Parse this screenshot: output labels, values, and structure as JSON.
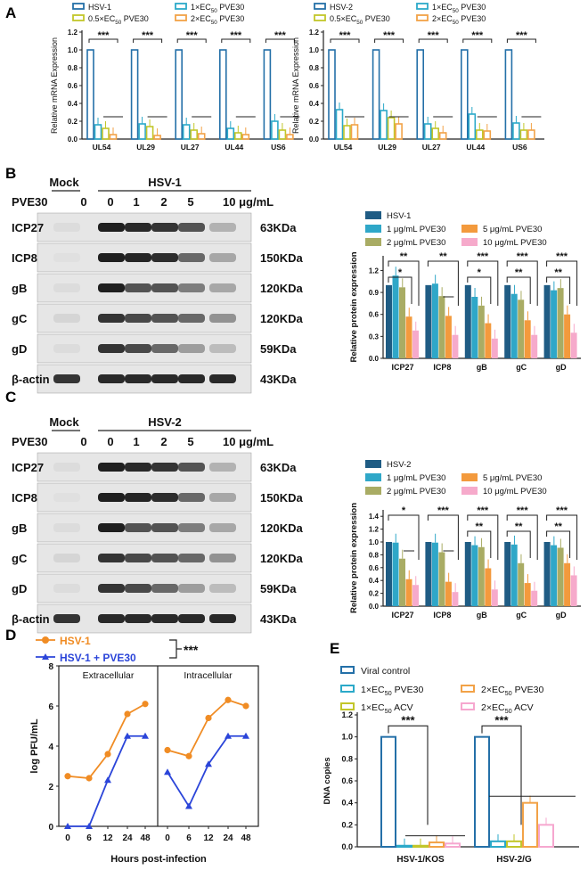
{
  "panels": {
    "A": "A",
    "B": "B",
    "C": "C",
    "D": "D",
    "E": "E"
  },
  "colors": {
    "c_hsv": "#2470A8",
    "c_05": "#2BA9C9",
    "c_1": "#C2C62A",
    "c_2": "#F2A247",
    "c_5": "#F39239",
    "c_10": "#F6A7CF",
    "wb_1": "#1F5C84",
    "wb_2": "#2FA7C8",
    "wb_3": "#A9AC64",
    "wb_4": "#F39A3D",
    "wb_5": "#F6AACB",
    "d_hsv1": "#F08C24",
    "d_pve": "#2B45D9",
    "e_viral": "#2470A8",
    "e_pve1": "#2BA9C9",
    "e_pve2": "#C2C62A",
    "e_acv1": "#F2A247",
    "e_acv2": "#F6A7CF"
  },
  "blot_B": {
    "mock": "Mock",
    "virus": "HSV-1",
    "pve_label": "PVE30",
    "lanes": [
      "0",
      "0",
      "1",
      "2",
      "5",
      "10 μg/mL"
    ],
    "rows": [
      {
        "protein": "ICP27",
        "size": "63KDa"
      },
      {
        "protein": "ICP8",
        "size": "150KDa"
      },
      {
        "protein": "gB",
        "size": "120KDa"
      },
      {
        "protein": "gC",
        "size": "120KDa"
      },
      {
        "protein": "gD",
        "size": "59KDa"
      },
      {
        "protein": "β-actin",
        "size": "43KDa"
      }
    ]
  },
  "blot_C": {
    "mock": "Mock",
    "virus": "HSV-2",
    "pve_label": "PVE30",
    "lanes": [
      "0",
      "0",
      "1",
      "2",
      "5",
      "10 μg/mL"
    ],
    "rows": [
      {
        "protein": "ICP27",
        "size": "63KDa"
      },
      {
        "protein": "ICP8",
        "size": "150KDa"
      },
      {
        "protein": "gB",
        "size": "120KDa"
      },
      {
        "protein": "gC",
        "size": "120KDa"
      },
      {
        "protein": "gD",
        "size": "59KDa"
      },
      {
        "protein": "β-actin",
        "size": "43KDa"
      }
    ]
  },
  "chart_data": [
    {
      "id": "A1",
      "type": "bar",
      "ylabel": "Relative mRNA Expression",
      "ylim": [
        0,
        1.2
      ],
      "yticks": [
        "0.0",
        "0.2",
        "0.4",
        "0.6",
        "0.8",
        "1.0",
        "1.2"
      ],
      "categories": [
        "UL54",
        "UL29",
        "UL27",
        "UL44",
        "US6"
      ],
      "legend": [
        "HSV-1",
        "1×EC50 PVE30",
        "0.5×EC50 PVE30",
        "2×EC50 PVE30"
      ],
      "sig": [
        "***",
        "***",
        "***",
        "***",
        "***"
      ],
      "series": [
        {
          "name": "HSV-1",
          "values": [
            1.0,
            1.0,
            1.0,
            1.0,
            1.0
          ]
        },
        {
          "name": "0.5×EC50 PVE30",
          "values": [
            0.16,
            0.17,
            0.16,
            0.12,
            0.2
          ]
        },
        {
          "name": "1×EC50 PVE30",
          "values": [
            0.12,
            0.14,
            0.1,
            0.07,
            0.1
          ]
        },
        {
          "name": "2×EC50 PVE30",
          "values": [
            0.05,
            0.04,
            0.06,
            0.05,
            0.05
          ]
        }
      ]
    },
    {
      "id": "A2",
      "type": "bar",
      "ylabel": "Relative mRNA Expression",
      "ylim": [
        0,
        1.2
      ],
      "yticks": [
        "0.0",
        "0.2",
        "0.4",
        "0.6",
        "0.8",
        "1.0",
        "1.2"
      ],
      "categories": [
        "UL54",
        "UL29",
        "UL27",
        "UL44",
        "US6"
      ],
      "legend": [
        "HSV-2",
        "1×EC50 PVE30",
        "0.5×EC50 PVE30",
        "2×EC50 PVE30"
      ],
      "sig": [
        "***",
        "***",
        "***",
        "***",
        "***"
      ],
      "series": [
        {
          "name": "HSV-2",
          "values": [
            1.0,
            1.0,
            1.0,
            1.0,
            1.0
          ]
        },
        {
          "name": "0.5×EC50 PVE30",
          "values": [
            0.33,
            0.32,
            0.17,
            0.28,
            0.18
          ]
        },
        {
          "name": "1×EC50 PVE30",
          "values": [
            0.15,
            0.24,
            0.12,
            0.1,
            0.1
          ]
        },
        {
          "name": "2×EC50 PVE30",
          "values": [
            0.16,
            0.17,
            0.07,
            0.09,
            0.1
          ]
        }
      ]
    },
    {
      "id": "B",
      "type": "bar",
      "ylabel": "Relative protein expression",
      "ylim": [
        0,
        1.4
      ],
      "yticks": [
        "0.0",
        "0.3",
        "0.6",
        "0.9",
        "1.2"
      ],
      "categories": [
        "ICP27",
        "ICP8",
        "gB",
        "gC",
        "gD"
      ],
      "legend": [
        "HSV-1",
        "1 μg/mL PVE30",
        "2 μg/mL PVE30",
        "5 μg/mL PVE30",
        "10 μg/mL PVE30"
      ],
      "sig_outer": [
        "**",
        "**",
        "***",
        "***",
        "***"
      ],
      "sig_inner": [
        "*",
        "",
        "*",
        "**",
        "**"
      ],
      "series": [
        {
          "name": "HSV-1",
          "values": [
            1.0,
            1.0,
            1.0,
            1.0,
            1.0
          ]
        },
        {
          "name": "1 μg/mL PVE30",
          "values": [
            1.13,
            1.02,
            0.84,
            0.88,
            0.93
          ]
        },
        {
          "name": "2 μg/mL PVE30",
          "values": [
            0.97,
            0.85,
            0.72,
            0.8,
            0.96
          ]
        },
        {
          "name": "5 μg/mL PVE30",
          "values": [
            0.57,
            0.58,
            0.48,
            0.52,
            0.6
          ]
        },
        {
          "name": "10 μg/mL PVE30",
          "values": [
            0.38,
            0.32,
            0.27,
            0.32,
            0.35
          ]
        }
      ]
    },
    {
      "id": "C",
      "type": "bar",
      "ylabel": "Relative protein expression",
      "ylim": [
        0,
        1.5
      ],
      "yticks": [
        "0.0",
        "0.2",
        "0.4",
        "0.6",
        "0.8",
        "1.0",
        "1.2",
        "1.4"
      ],
      "categories": [
        "ICP27",
        "ICP8",
        "gB",
        "gC",
        "gD"
      ],
      "legend": [
        "HSV-2",
        "1 μg/mL PVE30",
        "2 μg/mL PVE30",
        "5 μg/mL PVE30",
        "10 μg/mL PVE30"
      ],
      "sig_outer": [
        "*",
        "***",
        "***",
        "***",
        "***"
      ],
      "sig_inner": [
        "",
        "",
        "**",
        "**",
        "**"
      ],
      "series": [
        {
          "name": "HSV-2",
          "values": [
            1.0,
            1.0,
            1.0,
            1.0,
            1.0
          ]
        },
        {
          "name": "1 μg/mL PVE30",
          "values": [
            0.99,
            0.99,
            0.95,
            0.96,
            0.95
          ]
        },
        {
          "name": "2 μg/mL PVE30",
          "values": [
            0.74,
            0.84,
            0.92,
            0.67,
            0.91
          ]
        },
        {
          "name": "5 μg/mL PVE30",
          "values": [
            0.42,
            0.38,
            0.59,
            0.36,
            0.67
          ]
        },
        {
          "name": "10 μg/mL PVE30",
          "values": [
            0.33,
            0.22,
            0.26,
            0.24,
            0.48
          ]
        }
      ]
    },
    {
      "id": "D",
      "type": "line",
      "ylabel": "log PFU/mL",
      "xlabel": "Hours post-infection",
      "ylim": [
        0,
        8
      ],
      "yticks": [
        "0",
        "2",
        "4",
        "6",
        "8"
      ],
      "x": [
        "0",
        "6",
        "12",
        "24",
        "48"
      ],
      "subpanels": [
        "Extracellular",
        "Intracellular"
      ],
      "legend": [
        "HSV-1",
        "HSV-1 + PVE30"
      ],
      "sig": "***",
      "series": [
        {
          "name": "HSV-1",
          "extracellular": [
            2.5,
            2.4,
            3.6,
            5.6,
            6.1
          ],
          "intracellular": [
            3.8,
            3.5,
            5.4,
            6.3,
            6.0
          ]
        },
        {
          "name": "HSV-1 + PVE30",
          "extracellular": [
            0,
            0,
            2.3,
            4.5,
            4.5
          ],
          "intracellular": [
            2.7,
            1.0,
            3.1,
            4.5,
            4.5
          ]
        }
      ]
    },
    {
      "id": "E",
      "type": "bar",
      "ylabel": "DNA copies",
      "ylim": [
        0,
        1.2
      ],
      "yticks": [
        "0.0",
        "0.2",
        "0.4",
        "0.6",
        "0.8",
        "1.0",
        "1.2"
      ],
      "categories": [
        "HSV-1/KOS",
        "HSV-2/G"
      ],
      "legend": [
        "Viral control",
        "1×EC50 PVE30",
        "1×EC50 ACV",
        "2×EC50 PVE30",
        "2×EC50 ACV"
      ],
      "sig": [
        "***",
        "***"
      ],
      "series": [
        {
          "name": "Viral control",
          "values": [
            1.0,
            1.0
          ]
        },
        {
          "name": "1×EC50 PVE30",
          "values": [
            0.01,
            0.05
          ]
        },
        {
          "name": "2×EC50 PVE30",
          "values": [
            0.01,
            0.05
          ]
        },
        {
          "name": "1×EC50 ACV",
          "values": [
            0.04,
            0.4
          ]
        },
        {
          "name": "2×EC50 ACV",
          "values": [
            0.03,
            0.2
          ]
        }
      ]
    }
  ]
}
